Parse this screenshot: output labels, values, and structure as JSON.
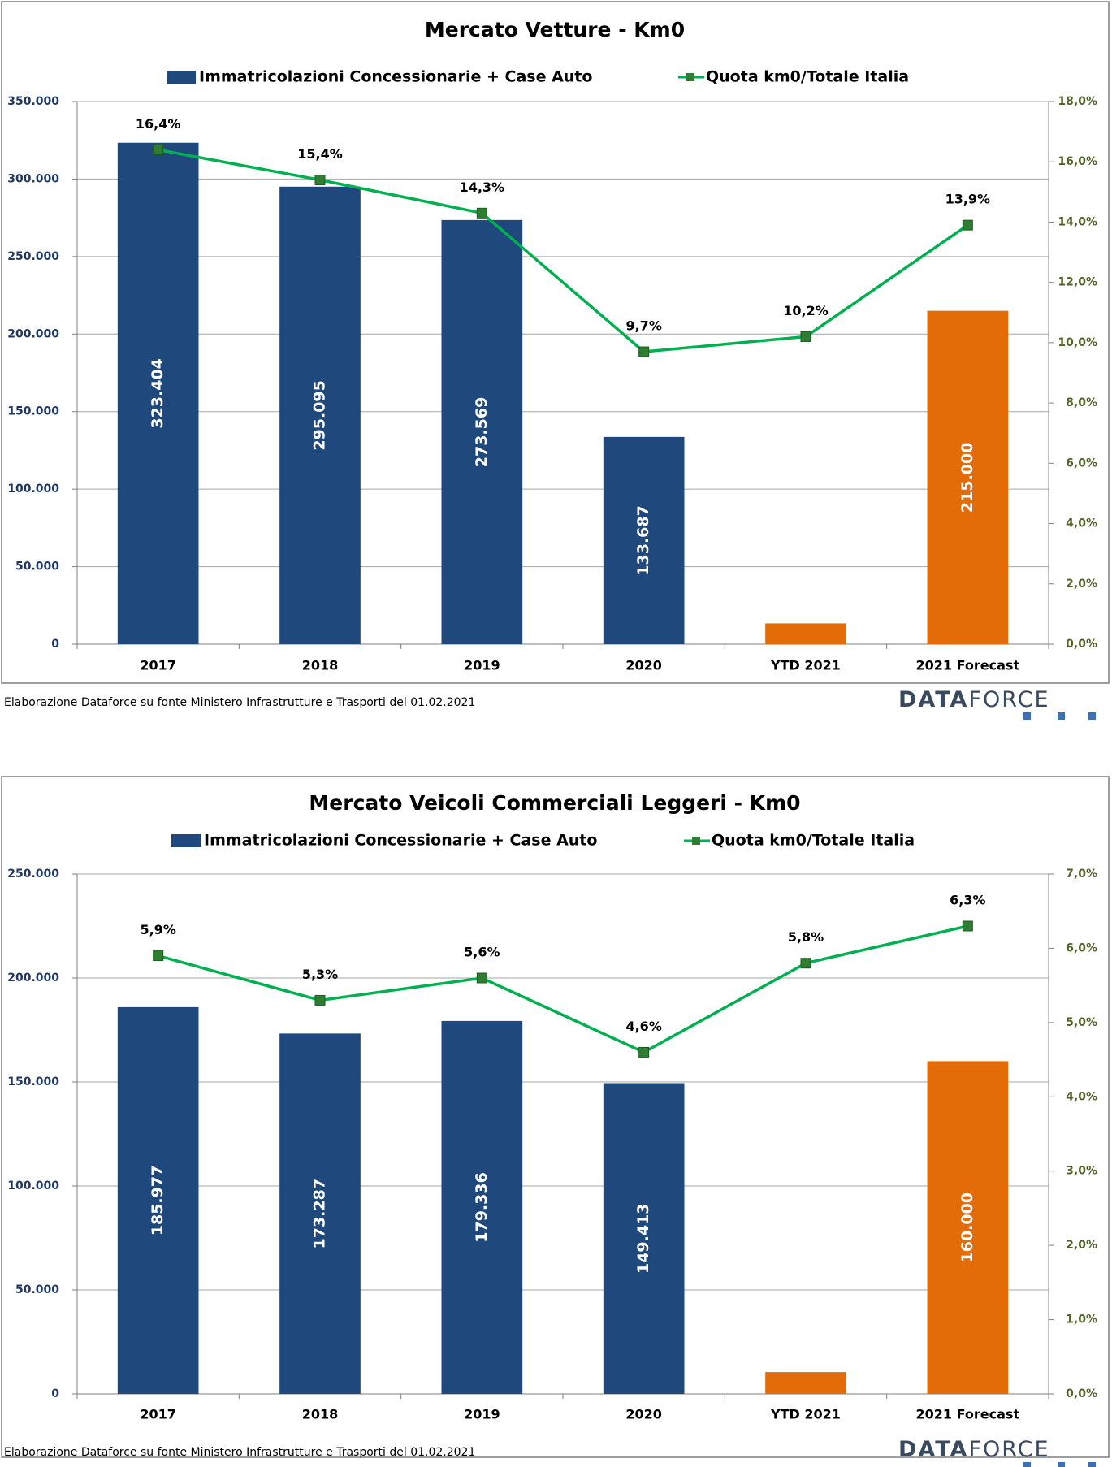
{
  "chart_data": [
    {
      "type": "bar",
      "title": "Mercato Vetture - Km0",
      "categories": [
        "2017",
        "2018",
        "2019",
        "2020",
        "YTD 2021",
        "2021 Forecast"
      ],
      "series": [
        {
          "name": "Immatricolazioni Concessionarie + Case Auto",
          "type": "bar",
          "color": "#1f497d",
          "colors": [
            "#1f497d",
            "#1f497d",
            "#1f497d",
            "#1f497d",
            "#e36c09",
            "#e36c09"
          ],
          "values": [
            323404,
            295095,
            273569,
            133687,
            13400,
            215000
          ],
          "value_labels": [
            "323.404",
            "295.095",
            "273.569",
            "133.687",
            null,
            "215.000"
          ]
        },
        {
          "name": "Quota km0/Totale Italia",
          "type": "line",
          "axis": "y2",
          "color": "#00b050",
          "marker_color": "#2e7d32",
          "values": [
            16.4,
            15.4,
            14.3,
            9.7,
            10.2,
            13.9
          ],
          "value_labels": [
            "16,4%",
            "15,4%",
            "14,3%",
            "9,7%",
            "10,2%",
            "13,9%"
          ]
        }
      ],
      "ylim": [
        0,
        350000
      ],
      "yticks": [
        0,
        {
          "value": 50000,
          "label": "50.000"
        },
        {
          "value": 100000,
          "label": "100.000"
        },
        {
          "value": 150000,
          "label": "150.000"
        },
        {
          "value": 200000,
          "label": "200.000"
        },
        {
          "value": 250000,
          "label": "250.000"
        },
        {
          "value": 300000,
          "label": "300.000"
        },
        {
          "value": 350000,
          "label": "350.000"
        }
      ],
      "y2lim": [
        0,
        18
      ],
      "y2ticks": [
        {
          "value": 0,
          "label": "0,0%"
        },
        {
          "value": 2,
          "label": "2,0%"
        },
        {
          "value": 4,
          "label": "4,0%"
        },
        {
          "value": 6,
          "label": "6,0%"
        },
        {
          "value": 8,
          "label": "8,0%"
        },
        {
          "value": 10,
          "label": "10,0%"
        },
        {
          "value": 12,
          "label": "12,0%"
        },
        {
          "value": 14,
          "label": "14,0%"
        },
        {
          "value": 16,
          "label": "16,0%"
        },
        {
          "value": 18,
          "label": "18,0%"
        }
      ],
      "grid": true,
      "source": "Elaborazione Dataforce su fonte Ministero Infrastrutture e Trasporti del 01.02.2021",
      "logo": [
        "DATA",
        "FORCE"
      ]
    },
    {
      "type": "bar",
      "title": "Mercato Veicoli Commerciali Leggeri - Km0",
      "categories": [
        "2017",
        "2018",
        "2019",
        "2020",
        "YTD 2021",
        "2021 Forecast"
      ],
      "series": [
        {
          "name": "Immatricolazioni Concessionarie + Case Auto",
          "type": "bar",
          "color": "#1f497d",
          "colors": [
            "#1f497d",
            "#1f497d",
            "#1f497d",
            "#1f497d",
            "#e36c09",
            "#e36c09"
          ],
          "values": [
            185977,
            173287,
            179336,
            149413,
            10500,
            160000
          ],
          "value_labels": [
            "185.977",
            "173.287",
            "179.336",
            "149.413",
            null,
            "160.000"
          ]
        },
        {
          "name": "Quota km0/Totale Italia",
          "type": "line",
          "axis": "y2",
          "color": "#00b050",
          "marker_color": "#2e7d32",
          "values": [
            5.9,
            5.3,
            5.6,
            4.6,
            5.8,
            6.3
          ],
          "value_labels": [
            "5,9%",
            "5,3%",
            "5,6%",
            "4,6%",
            "5,8%",
            "6,3%"
          ]
        }
      ],
      "ylim": [
        0,
        250000
      ],
      "yticks": [
        0,
        {
          "value": 50000,
          "label": "50.000"
        },
        {
          "value": 100000,
          "label": "100.000"
        },
        {
          "value": 150000,
          "label": "150.000"
        },
        {
          "value": 200000,
          "label": "200.000"
        },
        {
          "value": 250000,
          "label": "250.000"
        }
      ],
      "y2lim": [
        0,
        7
      ],
      "y2ticks": [
        {
          "value": 0,
          "label": "0,0%"
        },
        {
          "value": 1,
          "label": "1,0%"
        },
        {
          "value": 2,
          "label": "2,0%"
        },
        {
          "value": 3,
          "label": "3,0%"
        },
        {
          "value": 4,
          "label": "4,0%"
        },
        {
          "value": 5,
          "label": "5,0%"
        },
        {
          "value": 6,
          "label": "6,0%"
        },
        {
          "value": 7,
          "label": "7,0%"
        }
      ],
      "grid": true,
      "source": "Elaborazione Dataforce su fonte Ministero Infrastrutture e Trasporti del 01.02.2021",
      "logo": [
        "DATA",
        "FORCE"
      ]
    }
  ]
}
